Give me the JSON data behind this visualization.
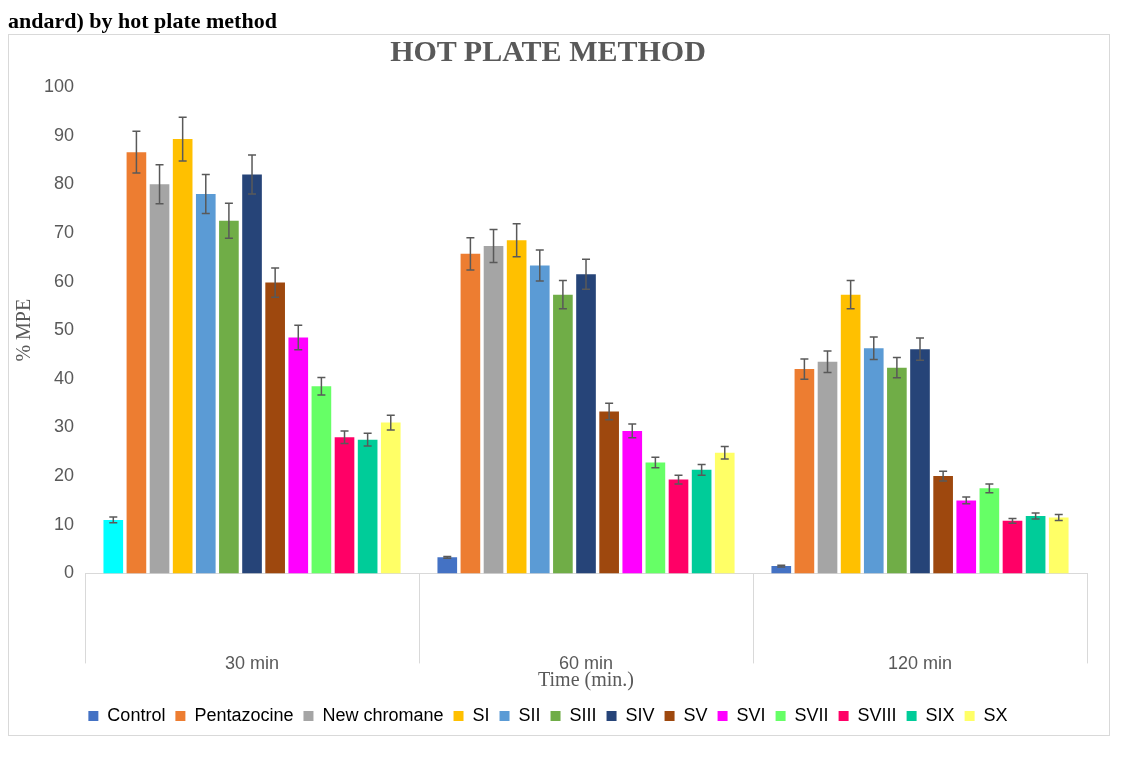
{
  "chart_data": {
    "type": "bar",
    "title": "HOT PLATE METHOD",
    "xlabel": "Time (min.)",
    "ylabel": "% MPE",
    "annotations": [
      "andard) by hot plate method"
    ],
    "categories": [
      "30 min",
      "60 min",
      "120 min"
    ],
    "ylim": [
      0,
      100
    ],
    "yticks": [
      0,
      10,
      20,
      30,
      40,
      50,
      60,
      70,
      80,
      90,
      100
    ],
    "grid": false,
    "legend": "bottom",
    "series": [
      {
        "name": "Control",
        "color": "#4472c4",
        "colors": [
          "#00ffff",
          "#4472c4",
          "#4472c4"
        ],
        "values": [
          11,
          3.3,
          1.5
        ],
        "errors": [
          0.6,
          0.2,
          0.2
        ]
      },
      {
        "name": "Pentazocine",
        "color": "#ed7d31",
        "values": [
          86.6,
          65.7,
          42
        ],
        "errors": [
          4.3,
          3.3,
          2.1
        ]
      },
      {
        "name": "New chromane",
        "color": "#a5a5a5",
        "values": [
          80,
          67.3,
          43.5
        ],
        "errors": [
          4,
          3.4,
          2.2
        ]
      },
      {
        "name": "SI",
        "color": "#ffc000",
        "values": [
          89.3,
          68.5,
          57.3
        ],
        "errors": [
          4.5,
          3.4,
          2.9
        ]
      },
      {
        "name": "SII",
        "color": "#5b9bd5",
        "values": [
          78,
          63.3,
          46.3
        ],
        "errors": [
          4,
          3.2,
          2.3
        ]
      },
      {
        "name": "SIII",
        "color": "#70ad47",
        "values": [
          72.5,
          57.3,
          42.3
        ],
        "errors": [
          3.6,
          2.9,
          2.1
        ]
      },
      {
        "name": "SIV",
        "color": "#264478",
        "values": [
          82,
          61.5,
          46.1
        ],
        "errors": [
          4,
          3.1,
          2.3
        ]
      },
      {
        "name": "SV",
        "color": "#9e480e",
        "values": [
          59.8,
          33.3,
          20
        ],
        "errors": [
          3,
          1.7,
          1
        ]
      },
      {
        "name": "SVI",
        "color": "#ff00ff",
        "values": [
          48.5,
          29.3,
          15
        ],
        "errors": [
          2.5,
          1.4,
          0.7
        ]
      },
      {
        "name": "SVII",
        "color": "#66ff66",
        "values": [
          38.5,
          22.8,
          17.5
        ],
        "errors": [
          1.8,
          1.1,
          0.9
        ]
      },
      {
        "name": "SVIII",
        "color": "#ff0066",
        "values": [
          28,
          19.3,
          10.8
        ],
        "errors": [
          1.3,
          0.9,
          0.5
        ]
      },
      {
        "name": "SIX",
        "color": "#00cc99",
        "values": [
          27.5,
          21.3,
          11.8
        ],
        "errors": [
          1.3,
          1.1,
          0.6
        ]
      },
      {
        "name": "SX",
        "color": "#ffff66",
        "values": [
          31,
          24.8,
          11.5
        ],
        "errors": [
          1.5,
          1.3,
          0.6
        ]
      }
    ]
  }
}
